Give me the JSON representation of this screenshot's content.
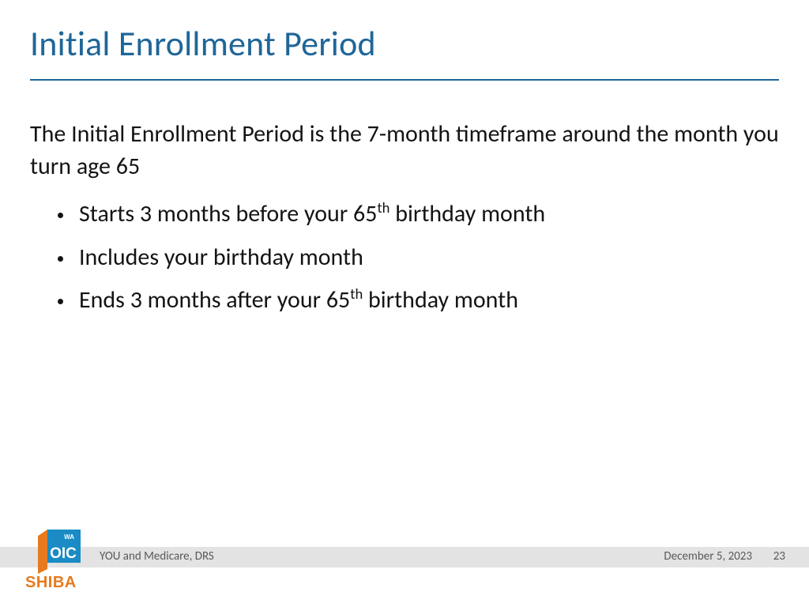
{
  "colors": {
    "title": "#1f6699",
    "rule": "#1f6699",
    "body_text": "#141414",
    "footer_bar_bg": "#e3e3e3",
    "footer_text": "#5a5a5a",
    "logo_blue": "#1a8bc4",
    "logo_orange": "#e77a1f",
    "shiba_text": "#e77a1f"
  },
  "title": "Initial Enrollment Period",
  "intro": "The Initial Enrollment Period is the 7-month timeframe around the month you turn age 65",
  "bullets": [
    {
      "pre": "Starts 3 months before your 65",
      "sup": "th",
      "post": " birthday month"
    },
    {
      "pre": "Includes your birthday month",
      "sup": "",
      "post": ""
    },
    {
      "pre": "Ends 3 months after your 65",
      "sup": "th",
      "post": " birthday month"
    }
  ],
  "footer": {
    "left": "YOU and Medicare, DRS",
    "date": "December 5, 2023",
    "page": "23"
  },
  "logo": {
    "wa_text": "WA",
    "oic_text": "OIC",
    "shiba_text": "SHIBA"
  }
}
